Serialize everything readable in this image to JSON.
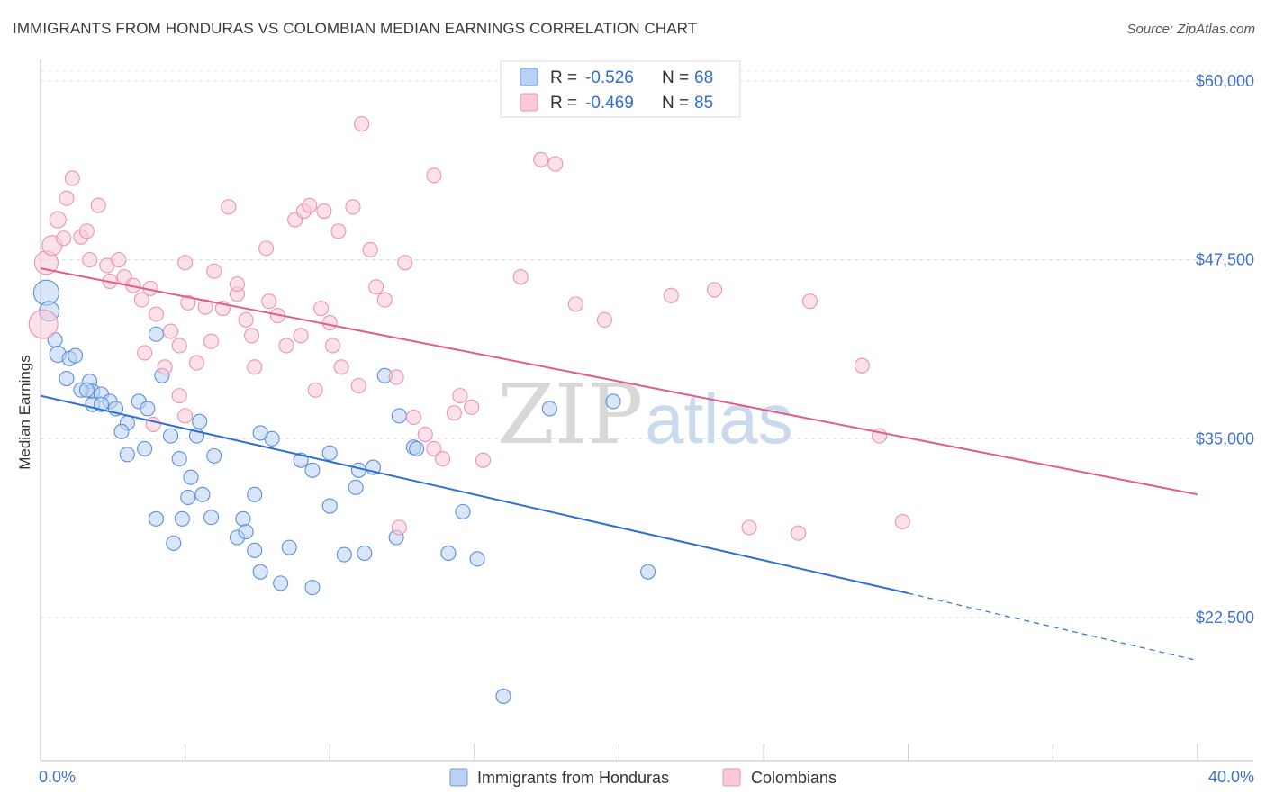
{
  "title": "IMMIGRANTS FROM HONDURAS VS COLOMBIAN MEDIAN EARNINGS CORRELATION CHART",
  "source": "Source: ZipAtlas.com",
  "watermark": {
    "zip": "ZIP",
    "atlas": "atlas"
  },
  "legend": {
    "r_label": "R =",
    "n_label": "N =",
    "rows": [
      {
        "series": "Immigrants from Honduras",
        "r": "-0.526",
        "n": "68",
        "fill": "#b9d2f4",
        "stroke": "#6b9be0"
      },
      {
        "series": "Colombians",
        "r": "-0.469",
        "n": "85",
        "fill": "#f9c9d8",
        "stroke": "#ec93b1"
      }
    ]
  },
  "chart_data": {
    "type": "scatter",
    "title": "IMMIGRANTS FROM HONDURAS VS COLOMBIAN MEDIAN EARNINGS CORRELATION CHART",
    "xlabel": "",
    "ylabel": "Median Earnings",
    "x_tick_labels": [
      "0.0%",
      "40.0%"
    ],
    "y_ticks": [
      22500,
      35000,
      47500,
      60000
    ],
    "y_tick_labels": [
      "$22,500",
      "$35,000",
      "$47,500",
      "$60,000"
    ],
    "xlim": [
      0,
      40
    ],
    "ylim": [
      12500,
      61250
    ],
    "grid": true,
    "legend_position": "top-center",
    "series": [
      {
        "name": "Immigrants from Honduras",
        "color": "#5a8fdc",
        "line_color": "#2f6fd1",
        "trend": {
          "x0": 0,
          "y0": 38000,
          "x1": 30,
          "y1": 24200,
          "dash_to_x": 40,
          "dash_to_y": 19500
        },
        "points": [
          [
            0.2,
            45200,
            14
          ],
          [
            0.3,
            43900,
            11
          ],
          [
            0.5,
            41900,
            8
          ],
          [
            0.6,
            40900,
            9
          ],
          [
            1.0,
            40600,
            8
          ],
          [
            1.2,
            40800,
            8
          ],
          [
            0.9,
            39200,
            8
          ],
          [
            1.7,
            39000,
            8
          ],
          [
            1.8,
            38300,
            8
          ],
          [
            1.4,
            38400,
            8
          ],
          [
            1.6,
            38400,
            8
          ],
          [
            2.1,
            38100,
            8
          ],
          [
            1.8,
            37400,
            8
          ],
          [
            2.4,
            37600,
            8
          ],
          [
            2.1,
            37400,
            8
          ],
          [
            2.6,
            37100,
            8
          ],
          [
            3.4,
            37600,
            8
          ],
          [
            3.7,
            37100,
            8
          ],
          [
            3.0,
            36100,
            8
          ],
          [
            2.8,
            35500,
            8
          ],
          [
            3.0,
            33900,
            8
          ],
          [
            3.6,
            34300,
            8
          ],
          [
            4.0,
            42300,
            8
          ],
          [
            4.2,
            39400,
            8
          ],
          [
            4.5,
            35200,
            8
          ],
          [
            4.8,
            33600,
            8
          ],
          [
            5.5,
            36200,
            8
          ],
          [
            5.4,
            35200,
            8
          ],
          [
            6.0,
            33800,
            8
          ],
          [
            5.2,
            32300,
            8
          ],
          [
            4.0,
            29400,
            8
          ],
          [
            4.9,
            29400,
            8
          ],
          [
            5.1,
            30900,
            8
          ],
          [
            5.6,
            31100,
            8
          ],
          [
            5.9,
            29500,
            8
          ],
          [
            4.6,
            27700,
            8
          ],
          [
            7.4,
            31100,
            8
          ],
          [
            7.0,
            29400,
            8
          ],
          [
            6.8,
            28100,
            8
          ],
          [
            7.1,
            28500,
            8
          ],
          [
            7.4,
            27200,
            8
          ],
          [
            8.6,
            27400,
            8
          ],
          [
            7.6,
            25700,
            8
          ],
          [
            8.3,
            24900,
            8
          ],
          [
            9.4,
            24600,
            8
          ],
          [
            10.5,
            26900,
            8
          ],
          [
            10.9,
            31600,
            8
          ],
          [
            11.2,
            27000,
            8
          ],
          [
            12.3,
            28100,
            8
          ],
          [
            12.4,
            36600,
            8
          ],
          [
            11.9,
            39400,
            8
          ],
          [
            14.1,
            27000,
            8
          ],
          [
            15.1,
            26600,
            8
          ],
          [
            10.0,
            34000,
            8
          ],
          [
            12.9,
            34400,
            8
          ],
          [
            14.6,
            29900,
            8
          ],
          [
            17.6,
            37100,
            8
          ],
          [
            21.0,
            25700,
            8
          ],
          [
            11.0,
            32800,
            8
          ],
          [
            8.0,
            35000,
            8
          ],
          [
            9.0,
            33500,
            8
          ],
          [
            10.0,
            30300,
            8
          ],
          [
            13.0,
            34300,
            8
          ],
          [
            19.8,
            37600,
            8
          ],
          [
            11.5,
            33000,
            8
          ],
          [
            9.4,
            32800,
            8
          ],
          [
            7.6,
            35400,
            8
          ],
          [
            16.0,
            17000,
            8
          ]
        ]
      },
      {
        "name": "Colombians",
        "color": "#ec93b1",
        "line_color": "#e25c8b",
        "trend": {
          "x0": 0,
          "y0": 46900,
          "x1": 40,
          "y1": 31100
        },
        "points": [
          [
            0.1,
            43000,
            16
          ],
          [
            0.2,
            47300,
            13
          ],
          [
            0.4,
            48500,
            11
          ],
          [
            0.6,
            50300,
            9
          ],
          [
            0.9,
            51800,
            8
          ],
          [
            1.1,
            53200,
            8
          ],
          [
            0.8,
            49000,
            8
          ],
          [
            1.4,
            49100,
            8
          ],
          [
            1.6,
            49500,
            8
          ],
          [
            2.0,
            51300,
            8
          ],
          [
            1.7,
            47500,
            8
          ],
          [
            2.3,
            47100,
            8
          ],
          [
            2.7,
            47500,
            8
          ],
          [
            2.4,
            46000,
            8
          ],
          [
            2.9,
            46300,
            8
          ],
          [
            3.2,
            45700,
            8
          ],
          [
            3.8,
            45500,
            8
          ],
          [
            3.5,
            44700,
            8
          ],
          [
            3.6,
            41000,
            8
          ],
          [
            4.0,
            43700,
            8
          ],
          [
            4.3,
            40000,
            8
          ],
          [
            4.5,
            42500,
            8
          ],
          [
            4.8,
            41500,
            8
          ],
          [
            5.1,
            44500,
            8
          ],
          [
            5.7,
            44200,
            8
          ],
          [
            5.9,
            41800,
            8
          ],
          [
            5.4,
            40300,
            8
          ],
          [
            6.0,
            46700,
            8
          ],
          [
            5.0,
            47300,
            8
          ],
          [
            6.3,
            44100,
            8
          ],
          [
            6.8,
            45100,
            8
          ],
          [
            7.1,
            43300,
            8
          ],
          [
            7.3,
            42200,
            8
          ],
          [
            7.4,
            40000,
            8
          ],
          [
            7.9,
            44600,
            8
          ],
          [
            8.2,
            43600,
            8
          ],
          [
            8.5,
            41500,
            8
          ],
          [
            9.0,
            42200,
            8
          ],
          [
            9.7,
            44100,
            8
          ],
          [
            10.0,
            43100,
            8
          ],
          [
            10.4,
            40000,
            8
          ],
          [
            10.1,
            41500,
            8
          ],
          [
            7.8,
            48300,
            8
          ],
          [
            8.8,
            50300,
            8
          ],
          [
            9.1,
            50900,
            8
          ],
          [
            9.3,
            51300,
            8
          ],
          [
            10.3,
            49500,
            8
          ],
          [
            10.8,
            51200,
            8
          ],
          [
            11.4,
            48200,
            8
          ],
          [
            11.6,
            45600,
            8
          ],
          [
            11.9,
            44700,
            8
          ],
          [
            12.3,
            39300,
            8
          ],
          [
            12.9,
            36500,
            8
          ],
          [
            13.3,
            35300,
            8
          ],
          [
            13.6,
            34300,
            8
          ],
          [
            13.9,
            33600,
            8
          ],
          [
            14.3,
            36800,
            8
          ],
          [
            14.5,
            38000,
            8
          ],
          [
            14.9,
            37200,
            8
          ],
          [
            15.3,
            33500,
            8
          ],
          [
            11.1,
            57000,
            8
          ],
          [
            13.6,
            53400,
            8
          ],
          [
            17.3,
            54500,
            8
          ],
          [
            17.8,
            54200,
            8
          ],
          [
            6.5,
            51200,
            8
          ],
          [
            9.8,
            50900,
            8
          ],
          [
            12.6,
            47300,
            8
          ],
          [
            16.6,
            46300,
            8
          ],
          [
            18.5,
            44400,
            8
          ],
          [
            19.5,
            43300,
            8
          ],
          [
            21.8,
            45000,
            8
          ],
          [
            23.3,
            45400,
            8
          ],
          [
            26.6,
            44600,
            8
          ],
          [
            28.4,
            40100,
            8
          ],
          [
            24.5,
            28800,
            8
          ],
          [
            26.2,
            28400,
            8
          ],
          [
            29.0,
            35200,
            8
          ],
          [
            29.8,
            29200,
            8
          ],
          [
            12.4,
            28800,
            8
          ],
          [
            11.0,
            38700,
            8
          ],
          [
            9.5,
            38400,
            8
          ],
          [
            4.8,
            38000,
            8
          ],
          [
            3.9,
            36000,
            8
          ],
          [
            6.8,
            45800,
            8
          ],
          [
            5.0,
            36600,
            8
          ]
        ]
      }
    ]
  }
}
